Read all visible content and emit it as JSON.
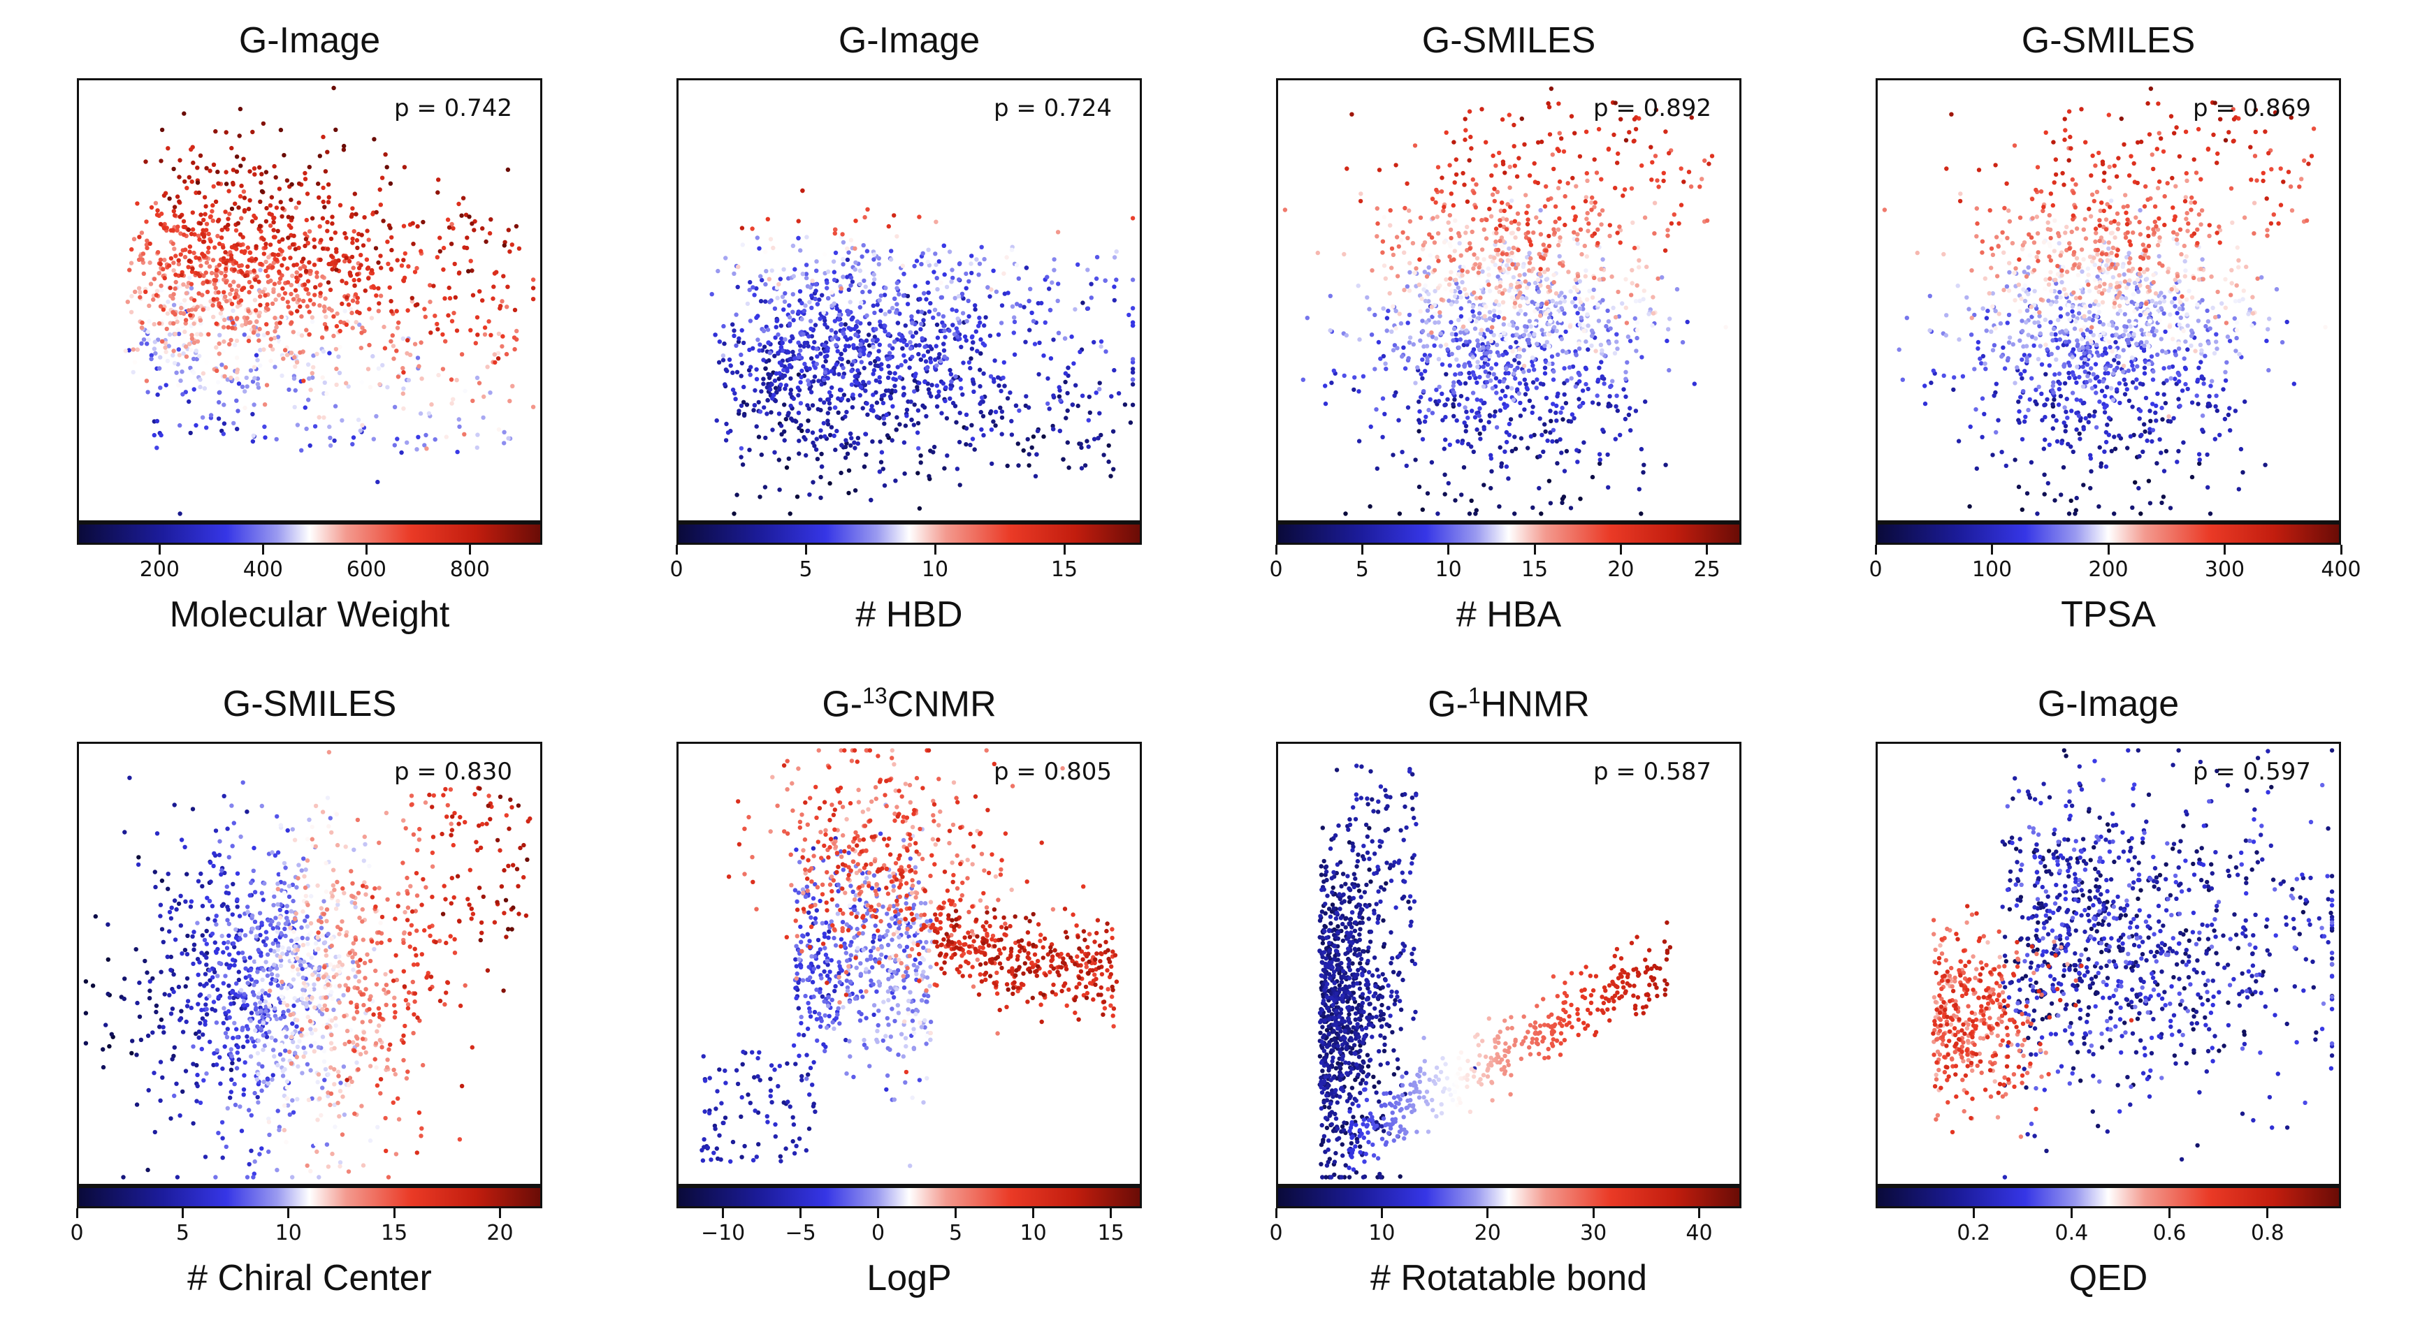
{
  "chart_data": [
    {
      "type": "scatter",
      "title": "G-Image",
      "title_sup": "",
      "title_rest": "",
      "annotation": "p = 0.742",
      "xlabel": "Molecular Weight",
      "colorbar_range": [
        40,
        940
      ],
      "ticks": [
        200,
        400,
        600,
        800
      ],
      "tick_labels": [
        "200",
        "400",
        "600",
        "800"
      ],
      "shape": "mw"
    },
    {
      "type": "scatter",
      "title": "G-Image",
      "title_sup": "",
      "title_rest": "",
      "annotation": "p = 0.724",
      "xlabel": "# HBD",
      "colorbar_range": [
        0,
        18
      ],
      "ticks": [
        0,
        5,
        10,
        15
      ],
      "tick_labels": [
        "0",
        "5",
        "10",
        "15"
      ],
      "shape": "hbd"
    },
    {
      "type": "scatter",
      "title": "G-SMILES",
      "title_sup": "",
      "title_rest": "",
      "annotation": "p = 0.892",
      "xlabel": "# HBA",
      "colorbar_range": [
        0,
        27
      ],
      "ticks": [
        0,
        5,
        10,
        15,
        20,
        25
      ],
      "tick_labels": [
        "0",
        "5",
        "10",
        "15",
        "20",
        "25"
      ],
      "shape": "hba"
    },
    {
      "type": "scatter",
      "title": "G-SMILES",
      "title_sup": "",
      "title_rest": "",
      "annotation": "p = 0.869",
      "xlabel": "TPSA",
      "colorbar_range": [
        0,
        400
      ],
      "ticks": [
        0,
        100,
        200,
        300,
        400
      ],
      "tick_labels": [
        "0",
        "100",
        "200",
        "300",
        "400"
      ],
      "shape": "tpsa"
    },
    {
      "type": "scatter",
      "title": "G-SMILES",
      "title_sup": "",
      "title_rest": "",
      "annotation": "p = 0.830",
      "xlabel": "# Chiral Center",
      "colorbar_range": [
        0,
        22
      ],
      "ticks": [
        0,
        5,
        10,
        15,
        20
      ],
      "tick_labels": [
        "0",
        "5",
        "10",
        "15",
        "20"
      ],
      "shape": "chiral"
    },
    {
      "type": "scatter",
      "title": "G-",
      "title_sup": "13",
      "title_rest": "CNMR",
      "annotation": "p = 0.805",
      "xlabel": "LogP",
      "colorbar_range": [
        -13,
        17
      ],
      "ticks": [
        -10,
        -5,
        0,
        5,
        10,
        15
      ],
      "tick_labels": [
        "−10",
        "−5",
        "0",
        "5",
        "10",
        "15"
      ],
      "shape": "logp"
    },
    {
      "type": "scatter",
      "title": "G-",
      "title_sup": "1",
      "title_rest": "HNMR",
      "annotation": "p = 0.587",
      "xlabel": "# Rotatable bond",
      "colorbar_range": [
        0,
        44
      ],
      "ticks": [
        0,
        10,
        20,
        30,
        40
      ],
      "tick_labels": [
        "0",
        "10",
        "20",
        "30",
        "40"
      ],
      "shape": "rot"
    },
    {
      "type": "scatter",
      "title": "G-Image",
      "title_sup": "",
      "title_rest": "",
      "annotation": "p = 0.597",
      "xlabel": "QED",
      "colorbar_range": [
        0,
        0.95
      ],
      "ticks": [
        0.2,
        0.4,
        0.6,
        0.8
      ],
      "tick_labels": [
        "0.2",
        "0.4",
        "0.6",
        "0.8"
      ],
      "shape": "qed"
    }
  ]
}
